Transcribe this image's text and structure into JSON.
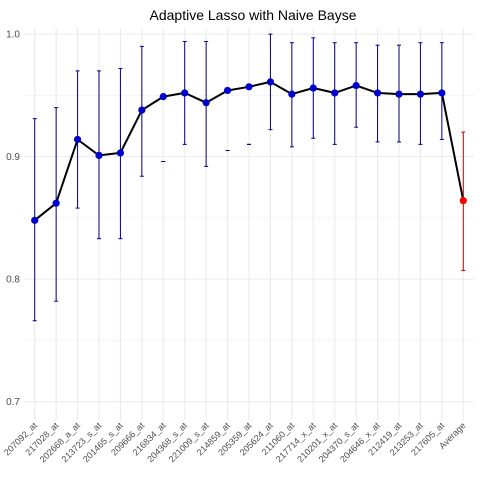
{
  "chart_data": {
    "type": "line",
    "title": "Adaptive Lasso with Naive Bayse",
    "xlabel": "",
    "ylabel": "",
    "ylim": [
      0.685,
      1.005
    ],
    "yticks": [
      0.7,
      0.8,
      0.9,
      1.0
    ],
    "ytick_labels": [
      "0.7",
      "0.8",
      "0.9",
      "1.0"
    ],
    "grid": true,
    "categories": [
      "207092_at",
      "217028_at",
      "202668_a_at",
      "213723_s_at",
      "201465_s_at",
      "209666_at",
      "216834_at",
      "204368_s_at",
      "221009_s_at",
      "214859_at",
      "205359_at",
      "205624_at",
      "211060_at",
      "217714_x_at",
      "210201_x_at",
      "204370_s_at",
      "204646_x_at",
      "212419_at",
      "213253_at",
      "217605_at",
      "Average"
    ],
    "values": [
      0.848,
      0.862,
      0.914,
      0.901,
      0.903,
      0.938,
      0.949,
      0.952,
      0.944,
      0.954,
      0.957,
      0.961,
      0.951,
      0.956,
      0.952,
      0.958,
      0.952,
      0.951,
      0.951,
      0.952,
      0.864
    ],
    "lower": [
      0.766,
      0.782,
      0.858,
      0.833,
      0.833,
      0.884,
      0.896,
      0.91,
      0.892,
      0.905,
      0.91,
      0.922,
      0.908,
      0.915,
      0.91,
      0.924,
      0.912,
      0.912,
      0.91,
      0.914,
      0.807
    ],
    "upper": [
      0.931,
      0.94,
      0.97,
      0.97,
      0.972,
      0.99,
      0.896,
      0.994,
      0.994,
      0.905,
      0.91,
      1.0,
      0.993,
      0.997,
      0.993,
      0.993,
      0.991,
      0.991,
      0.993,
      0.993,
      0.92
    ],
    "colors": {
      "line": "#000000",
      "gene_point": "#0000cd",
      "gene_error": "#00008b",
      "average_point": "#ff0000",
      "average_error": "#cd0000",
      "grid": "#ebebeb",
      "background": "#ffffff"
    }
  }
}
